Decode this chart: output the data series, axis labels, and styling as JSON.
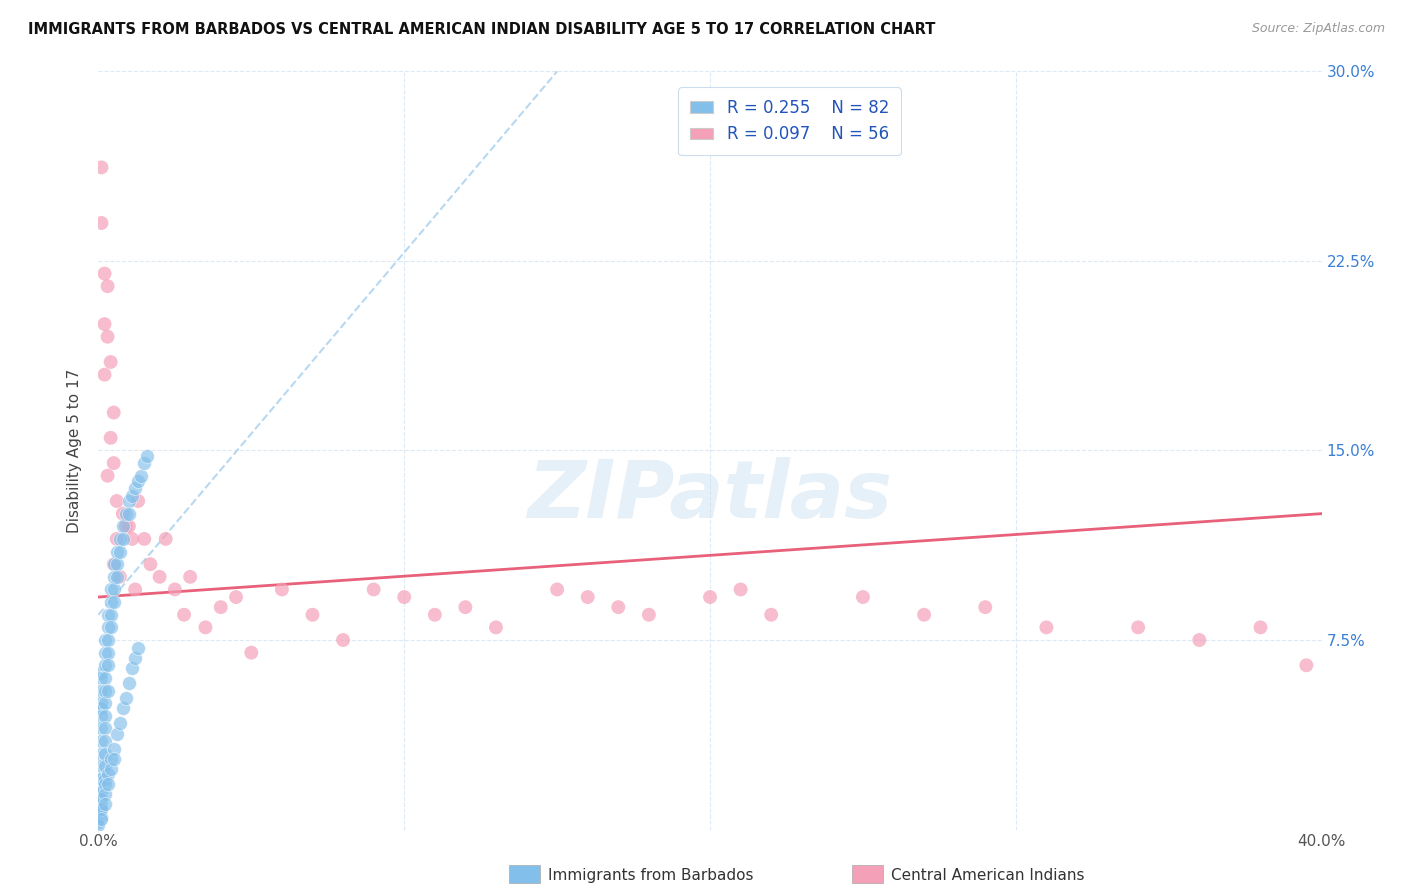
{
  "title": "IMMIGRANTS FROM BARBADOS VS CENTRAL AMERICAN INDIAN DISABILITY AGE 5 TO 17 CORRELATION CHART",
  "source": "Source: ZipAtlas.com",
  "ylabel": "Disability Age 5 to 17",
  "xlim": [
    0.0,
    0.4
  ],
  "ylim": [
    0.0,
    0.3
  ],
  "R_blue": 0.255,
  "N_blue": 82,
  "R_pink": 0.097,
  "N_pink": 56,
  "color_blue": "#82bfea",
  "color_pink": "#f4a0b8",
  "trendline_blue_color": "#b0d4f0",
  "trendline_pink_color": "#e8607a",
  "legend_label_blue": "Immigrants from Barbados",
  "legend_label_pink": "Central American Indians",
  "blue_x": [
    0.0,
    0.0,
    0.0,
    0.001,
    0.001,
    0.001,
    0.001,
    0.001,
    0.001,
    0.001,
    0.001,
    0.001,
    0.001,
    0.001,
    0.001,
    0.001,
    0.001,
    0.001,
    0.002,
    0.002,
    0.002,
    0.002,
    0.002,
    0.002,
    0.002,
    0.002,
    0.002,
    0.002,
    0.002,
    0.002,
    0.003,
    0.003,
    0.003,
    0.003,
    0.003,
    0.003,
    0.004,
    0.004,
    0.004,
    0.004,
    0.005,
    0.005,
    0.005,
    0.005,
    0.006,
    0.006,
    0.006,
    0.007,
    0.007,
    0.008,
    0.008,
    0.009,
    0.01,
    0.01,
    0.011,
    0.012,
    0.013,
    0.014,
    0.015,
    0.016,
    0.0,
    0.0,
    0.001,
    0.001,
    0.001,
    0.002,
    0.002,
    0.002,
    0.003,
    0.003,
    0.004,
    0.004,
    0.005,
    0.005,
    0.006,
    0.007,
    0.008,
    0.009,
    0.01,
    0.011,
    0.012,
    0.013
  ],
  "blue_y": [
    0.02,
    0.015,
    0.01,
    0.062,
    0.06,
    0.055,
    0.05,
    0.048,
    0.045,
    0.04,
    0.035,
    0.03,
    0.025,
    0.02,
    0.015,
    0.01,
    0.008,
    0.005,
    0.075,
    0.07,
    0.065,
    0.06,
    0.055,
    0.05,
    0.045,
    0.04,
    0.035,
    0.03,
    0.025,
    0.02,
    0.085,
    0.08,
    0.075,
    0.07,
    0.065,
    0.055,
    0.095,
    0.09,
    0.085,
    0.08,
    0.105,
    0.1,
    0.095,
    0.09,
    0.11,
    0.105,
    0.1,
    0.115,
    0.11,
    0.12,
    0.115,
    0.125,
    0.13,
    0.125,
    0.132,
    0.135,
    0.138,
    0.14,
    0.145,
    0.148,
    0.003,
    0.002,
    0.012,
    0.008,
    0.004,
    0.018,
    0.014,
    0.01,
    0.022,
    0.018,
    0.028,
    0.024,
    0.032,
    0.028,
    0.038,
    0.042,
    0.048,
    0.052,
    0.058,
    0.064,
    0.068,
    0.072
  ],
  "pink_x": [
    0.001,
    0.001,
    0.002,
    0.002,
    0.003,
    0.003,
    0.004,
    0.004,
    0.005,
    0.005,
    0.006,
    0.006,
    0.007,
    0.008,
    0.009,
    0.01,
    0.011,
    0.012,
    0.013,
    0.015,
    0.017,
    0.02,
    0.022,
    0.025,
    0.028,
    0.03,
    0.035,
    0.04,
    0.045,
    0.05,
    0.06,
    0.07,
    0.08,
    0.09,
    0.1,
    0.11,
    0.12,
    0.13,
    0.15,
    0.16,
    0.17,
    0.18,
    0.2,
    0.21,
    0.22,
    0.25,
    0.27,
    0.29,
    0.31,
    0.34,
    0.36,
    0.38,
    0.395,
    0.002,
    0.003,
    0.005
  ],
  "pink_y": [
    0.262,
    0.24,
    0.22,
    0.2,
    0.215,
    0.195,
    0.185,
    0.155,
    0.165,
    0.145,
    0.13,
    0.115,
    0.1,
    0.125,
    0.12,
    0.12,
    0.115,
    0.095,
    0.13,
    0.115,
    0.105,
    0.1,
    0.115,
    0.095,
    0.085,
    0.1,
    0.08,
    0.088,
    0.092,
    0.07,
    0.095,
    0.085,
    0.075,
    0.095,
    0.092,
    0.085,
    0.088,
    0.08,
    0.095,
    0.092,
    0.088,
    0.085,
    0.092,
    0.095,
    0.085,
    0.092,
    0.085,
    0.088,
    0.08,
    0.08,
    0.075,
    0.08,
    0.065,
    0.18,
    0.14,
    0.105
  ],
  "watermark_text": "ZIPatlas",
  "background_color": "#ffffff",
  "grid_color": "#ddeaf5"
}
